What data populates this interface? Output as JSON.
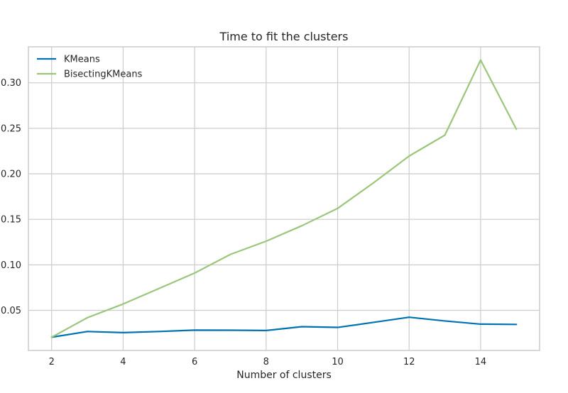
{
  "chart_data": {
    "type": "line",
    "title": "Time to fit the clusters",
    "xlabel": "Number of clusters",
    "ylabel": "",
    "x": [
      2,
      3,
      4,
      5,
      6,
      7,
      8,
      9,
      10,
      11,
      12,
      13,
      14,
      15
    ],
    "series": [
      {
        "name": "KMeans",
        "color": "#0072b2",
        "values": [
          0.0205,
          0.0268,
          0.0256,
          0.0268,
          0.0283,
          0.0282,
          0.0279,
          0.0321,
          0.0313,
          0.0368,
          0.0425,
          0.0384,
          0.0349,
          0.0346
        ]
      },
      {
        "name": "BisectingKMeans",
        "color": "#9bc67b",
        "values": [
          0.0205,
          0.042,
          0.057,
          0.074,
          0.091,
          0.1115,
          0.126,
          0.143,
          0.162,
          0.19,
          0.2195,
          0.2425,
          0.325,
          0.249
        ]
      }
    ],
    "xlim": [
      1.35,
      15.65
    ],
    "ylim": [
      0.006,
      0.3395
    ],
    "xticks": [
      2,
      4,
      6,
      8,
      10,
      12,
      14
    ],
    "yticks": [
      0.05,
      0.1,
      0.15,
      0.2,
      0.25,
      0.3
    ],
    "xtick_labels": [
      "2",
      "4",
      "6",
      "8",
      "10",
      "12",
      "14"
    ],
    "ytick_labels": [
      "0.05",
      "0.10",
      "0.15",
      "0.20",
      "0.25",
      "0.30"
    ],
    "grid": true,
    "legend_position": "top-left",
    "colors": {
      "grid": "#cccccc",
      "frame": "#cccccc",
      "background": "#ffffff"
    }
  }
}
